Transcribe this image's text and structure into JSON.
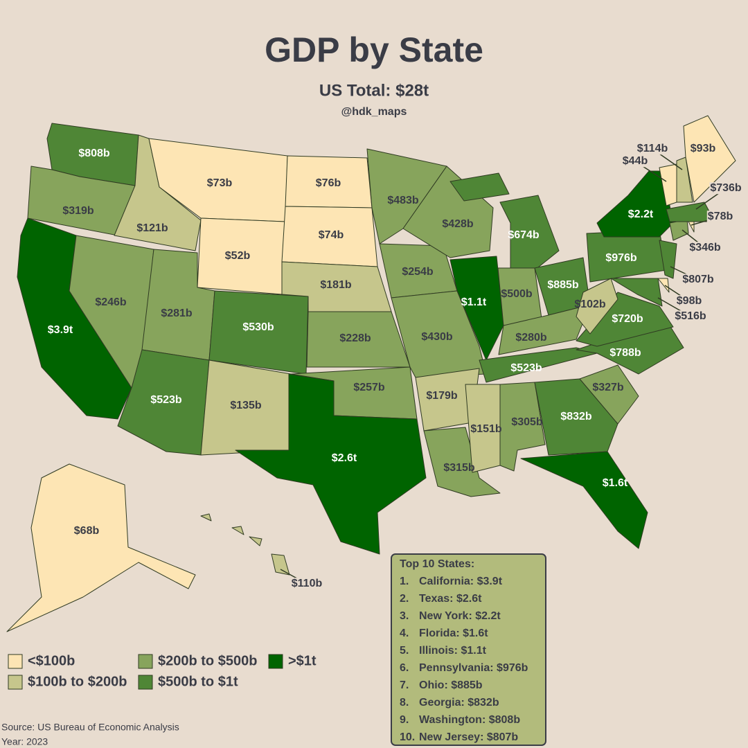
{
  "header": {
    "title": "GDP by State",
    "subtitle": "US Total: $28t",
    "handle": "@hdk_maps"
  },
  "legend": [
    {
      "label": "<$100b",
      "color": "#fde5b4"
    },
    {
      "label": "$100b to $200b",
      "color": "#c6c68c"
    },
    {
      "label": "$200b to $500b",
      "color": "#87a45c"
    },
    {
      "label": "$500b to $1t",
      "color": "#4f8636"
    },
    {
      "label": ">$1t",
      "color": "#006400"
    }
  ],
  "states": [
    {
      "label": "$808b",
      "color": "#4f8636"
    },
    {
      "label": "$319b",
      "color": "#87a45c"
    },
    {
      "label": "$3.9t",
      "color": "#006400"
    },
    {
      "label": "$121b",
      "color": "#c6c68c"
    },
    {
      "label": "$246b",
      "color": "#87a45c"
    },
    {
      "label": "$73b",
      "color": "#fde5b4"
    },
    {
      "label": "$52b",
      "color": "#fde5b4"
    },
    {
      "label": "$281b",
      "color": "#87a45c"
    },
    {
      "label": "$523b",
      "color": "#4f8636"
    },
    {
      "label": "$530b",
      "color": "#4f8636"
    },
    {
      "label": "$135b",
      "color": "#c6c68c"
    },
    {
      "label": "$76b",
      "color": "#fde5b4"
    },
    {
      "label": "$74b",
      "color": "#fde5b4"
    },
    {
      "label": "$181b",
      "color": "#c6c68c"
    },
    {
      "label": "$228b",
      "color": "#87a45c"
    },
    {
      "label": "$257b",
      "color": "#87a45c"
    },
    {
      "label": "$2.6t",
      "color": "#006400"
    },
    {
      "label": "$483b",
      "color": "#87a45c"
    },
    {
      "label": "$254b",
      "color": "#87a45c"
    },
    {
      "label": "$430b",
      "color": "#87a45c"
    },
    {
      "label": "$179b",
      "color": "#c6c68c"
    },
    {
      "label": "$315b",
      "color": "#87a45c"
    },
    {
      "label": "$428b",
      "color": "#87a45c"
    },
    {
      "label": "$1.1t",
      "color": "#006400"
    },
    {
      "label": "$674b",
      "color": "#4f8636"
    },
    {
      "label": "$500b",
      "color": "#87a45c"
    },
    {
      "label": "$885b",
      "color": "#4f8636"
    },
    {
      "label": "$280b",
      "color": "#87a45c"
    },
    {
      "label": "$523b",
      "color": "#4f8636"
    },
    {
      "label": "$151b",
      "color": "#c6c68c"
    },
    {
      "label": "$305b",
      "color": "#87a45c"
    },
    {
      "label": "$832b",
      "color": "#4f8636"
    },
    {
      "label": "$1.6t",
      "color": "#006400"
    },
    {
      "label": "$327b",
      "color": "#87a45c"
    },
    {
      "label": "$788b",
      "color": "#4f8636"
    },
    {
      "label": "$720b",
      "color": "#4f8636"
    },
    {
      "label": "$102b",
      "color": "#c6c68c"
    },
    {
      "label": "$976b",
      "color": "#4f8636"
    },
    {
      "label": "$2.2t",
      "color": "#006400"
    },
    {
      "label": "$807b",
      "color": "#4f8636"
    },
    {
      "label": "$98b",
      "color": "#fde5b4"
    },
    {
      "label": "$516b",
      "color": "#4f8636"
    },
    {
      "label": "$346b",
      "color": "#87a45c"
    },
    {
      "label": "$78b",
      "color": "#fde5b4"
    },
    {
      "label": "$736b",
      "color": "#4f8636"
    },
    {
      "label": "$44b",
      "color": "#fde5b4"
    },
    {
      "label": "$114b",
      "color": "#c6c68c"
    },
    {
      "label": "$93b",
      "color": "#fde5b4"
    },
    {
      "label": "$68b",
      "color": "#fde5b4"
    },
    {
      "label": "$110b",
      "color": "#c6c68c"
    }
  ],
  "top10": {
    "title": "Top 10 States:",
    "items": [
      {
        "rank": "1.",
        "text": "California: $3.9t"
      },
      {
        "rank": "2.",
        "text": "Texas: $2.6t"
      },
      {
        "rank": "3.",
        "text": "New York: $2.2t"
      },
      {
        "rank": "4.",
        "text": "Florida: $1.6t"
      },
      {
        "rank": "5.",
        "text": "Illinois: $1.1t"
      },
      {
        "rank": "6.",
        "text": "Pennsylvania: $976b"
      },
      {
        "rank": "7.",
        "text": "Ohio: $885b"
      },
      {
        "rank": "8.",
        "text": "Georgia: $832b"
      },
      {
        "rank": "9.",
        "text": "Washington: $808b"
      },
      {
        "rank": "10.",
        "text": "New Jersey: $807b"
      }
    ]
  },
  "footer": {
    "source": "Source: US Bureau of Economic Analysis",
    "year": "Year: 2023"
  }
}
